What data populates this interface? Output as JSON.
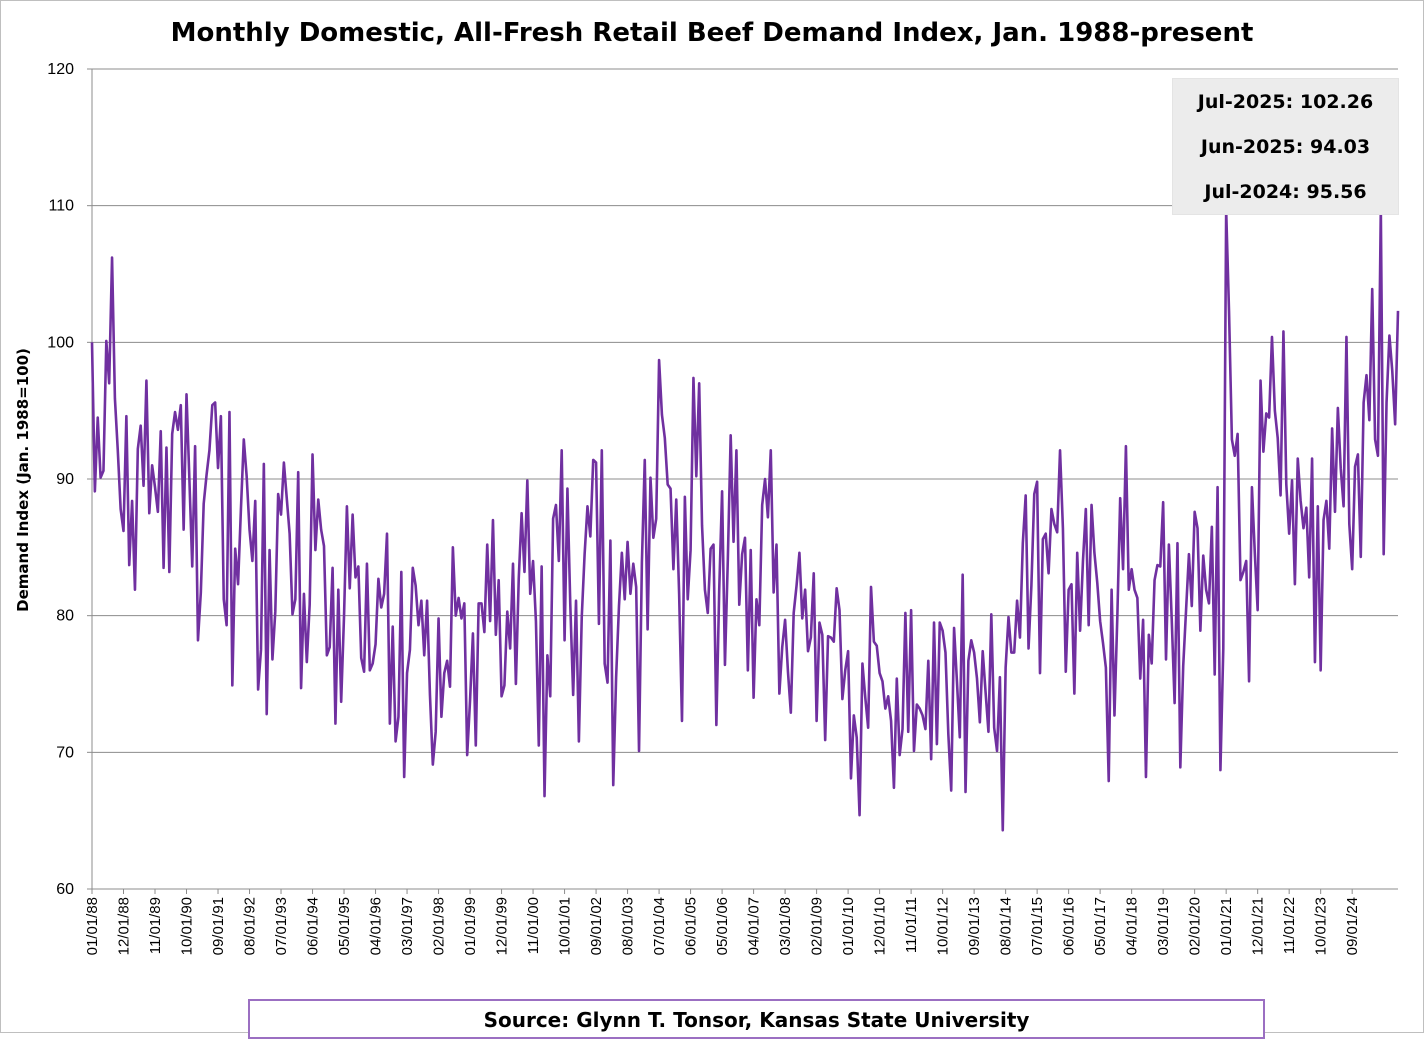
{
  "chart_data": {
    "type": "line",
    "title": "Monthly Domestic, All-Fresh Retail Beef Demand Index, Jan. 1988-present",
    "ylabel": "Demand Index (Jan. 1988=100)",
    "xlabel": "",
    "ylim": [
      60,
      120
    ],
    "yticks": [
      60,
      70,
      80,
      90,
      100,
      110,
      120
    ],
    "grid": "horizontal",
    "legend": "none",
    "line_color": "#7030A0",
    "x_start": "01/01/88",
    "x_tick_labels": [
      "01/01/88",
      "12/01/88",
      "11/01/89",
      "10/01/90",
      "09/01/91",
      "08/01/92",
      "07/01/93",
      "06/01/94",
      "05/01/95",
      "04/01/96",
      "03/01/97",
      "02/01/98",
      "01/01/99",
      "12/01/99",
      "11/01/00",
      "10/01/01",
      "09/01/02",
      "08/01/03",
      "07/01/04",
      "06/01/05",
      "05/01/06",
      "04/01/07",
      "03/01/08",
      "02/01/09",
      "01/01/10",
      "12/01/10",
      "11/01/11",
      "10/01/12",
      "09/01/13",
      "08/01/14",
      "07/01/15",
      "06/01/16",
      "05/01/17",
      "04/01/18",
      "03/01/19",
      "02/01/20",
      "01/01/21",
      "12/01/21",
      "11/01/22",
      "10/01/23",
      "09/01/24"
    ],
    "series": [
      {
        "name": "",
        "values": [
          100.0,
          89.1,
          94.5,
          90.1,
          90.6,
          100.1,
          97.0,
          106.2,
          95.9,
          92.1,
          87.8,
          86.2,
          94.6,
          83.7,
          88.4,
          81.9,
          92.2,
          93.9,
          89.5,
          97.2,
          87.5,
          91.0,
          89.4,
          87.6,
          93.5,
          83.5,
          92.3,
          83.2,
          93.3,
          94.9,
          93.6,
          95.4,
          86.3,
          96.2,
          90.0,
          83.6,
          92.4,
          78.2,
          81.7,
          88.2,
          90.3,
          92.1,
          95.4,
          95.6,
          90.8,
          94.6,
          81.2,
          79.3,
          94.9,
          74.9,
          84.9,
          82.3,
          87.8,
          92.9,
          90.2,
          86.3,
          84.0,
          88.4,
          74.6,
          77.5,
          91.1,
          72.8,
          84.8,
          76.8,
          80.3,
          88.9,
          87.4,
          91.2,
          88.6,
          86.0,
          80.1,
          81.2,
          90.5,
          74.7,
          81.6,
          76.6,
          80.8,
          91.8,
          84.8,
          88.5,
          86.3,
          85.1,
          77.1,
          77.7,
          83.5,
          72.1,
          81.9,
          73.7,
          80.0,
          88.0,
          82.0,
          87.4,
          82.8,
          83.6,
          76.9,
          75.9,
          83.8,
          76.0,
          76.5,
          77.9,
          82.7,
          80.6,
          81.6,
          86.0,
          72.1,
          79.2,
          70.8,
          72.6,
          83.2,
          68.2,
          75.8,
          77.5,
          83.5,
          82.2,
          79.3,
          81.1,
          77.1,
          81.1,
          74.2,
          69.1,
          71.5,
          79.8,
          72.6,
          75.8,
          76.7,
          74.8,
          85.0,
          80.0,
          81.3,
          79.8,
          80.9,
          69.8,
          73.8,
          78.7,
          70.5,
          80.9,
          80.9,
          78.8,
          85.2,
          79.6,
          87.0,
          78.6,
          82.6,
          74.1,
          74.9,
          80.3,
          77.6,
          83.8,
          75.0,
          82.7,
          87.5,
          83.2,
          89.9,
          81.6,
          84.0,
          79.6,
          70.5,
          83.6,
          66.8,
          77.1,
          74.1,
          87.1,
          88.1,
          84.0,
          92.1,
          78.2,
          89.3,
          80.8,
          74.2,
          81.1,
          70.8,
          79.9,
          84.5,
          88.0,
          85.8,
          91.4,
          91.2,
          79.4,
          92.1,
          76.5,
          75.1,
          85.5,
          67.6,
          75.5,
          80.7,
          84.6,
          81.2,
          85.4,
          81.6,
          83.8,
          82.1,
          70.1,
          83.9,
          91.4,
          79.0,
          90.1,
          85.7,
          87.1,
          98.7,
          94.7,
          93.0,
          89.6,
          89.3,
          83.4,
          88.5,
          81.6,
          72.3,
          88.7,
          81.2,
          84.8,
          97.4,
          90.2,
          97.0,
          86.6,
          81.9,
          80.2,
          84.9,
          85.2,
          72.0,
          81.9,
          89.1,
          76.4,
          84.1,
          93.2,
          85.4,
          92.1,
          80.8,
          84.5,
          85.7,
          76.0,
          84.8,
          74.0,
          81.2,
          79.3,
          88.1,
          90.0,
          87.2,
          92.1,
          81.7,
          85.2,
          74.3,
          77.7,
          79.7,
          75.9,
          72.9,
          80.2,
          82.2,
          84.6,
          79.8,
          81.9,
          77.4,
          78.4,
          83.1,
          72.3,
          79.5,
          78.6,
          70.9,
          78.5,
          78.4,
          78.1,
          82.0,
          80.4,
          73.9,
          76.0,
          77.4,
          68.1,
          72.7,
          71.1,
          65.4,
          76.5,
          74.0,
          71.8,
          82.1,
          78.1,
          77.8,
          75.8,
          75.2,
          73.2,
          74.1,
          72.3,
          67.4,
          75.4,
          69.8,
          71.7,
          80.2,
          71.5,
          80.4,
          70.1,
          73.5,
          73.2,
          72.7,
          71.7,
          76.7,
          69.5,
          79.5,
          70.6,
          79.5,
          78.9,
          77.3,
          71.3,
          67.2,
          79.1,
          75.2,
          71.1,
          83.0,
          67.1,
          76.7,
          78.2,
          77.3,
          75.4,
          72.2,
          77.4,
          74.4,
          71.5,
          80.1,
          71.8,
          70.1,
          75.5,
          64.3,
          76.2,
          79.9,
          77.3,
          77.3,
          81.1,
          78.4,
          85.3,
          88.8,
          77.6,
          82.2,
          88.9,
          89.8,
          75.8,
          85.6,
          86.0,
          83.1,
          87.8,
          86.7,
          86.1,
          92.1,
          86.4,
          75.9,
          81.9,
          82.3,
          74.3,
          84.6,
          78.9,
          84.0,
          87.8,
          79.3,
          88.1,
          84.6,
          82.4,
          79.6,
          78.0,
          76.2,
          67.9,
          81.9,
          72.7,
          79.9,
          88.6,
          83.4,
          92.4,
          81.9,
          83.4,
          81.9,
          81.3,
          75.4,
          79.7,
          68.2,
          78.6,
          76.5,
          82.6,
          83.7,
          83.6,
          88.3,
          76.8,
          85.2,
          79.7,
          73.6,
          85.3,
          68.9,
          76.3,
          80.4,
          84.5,
          80.7,
          87.6,
          86.4,
          78.9,
          84.4,
          81.9,
          80.9,
          86.5,
          75.7,
          89.4,
          68.7,
          77.6,
          109.7,
          102.3,
          92.9,
          91.7,
          93.3,
          82.6,
          83.2,
          84.0,
          75.2,
          89.4,
          84.6,
          80.4,
          97.2,
          92.0,
          94.8,
          94.5,
          100.4,
          95.0,
          93.0,
          88.8,
          100.8,
          89.6,
          86.0,
          89.9,
          82.3,
          91.5,
          88.4,
          86.4,
          87.9,
          82.8,
          91.5,
          76.6,
          88.0,
          76.0,
          87.0,
          88.4,
          84.9,
          93.7,
          87.6,
          95.2,
          90.8,
          88.0,
          100.4,
          86.7,
          83.4,
          90.9,
          91.8,
          84.3,
          95.6,
          97.6,
          94.3,
          103.9,
          92.9,
          91.7,
          109.8,
          84.5,
          95.6,
          100.5,
          97.9,
          94.0,
          102.3
        ]
      }
    ]
  },
  "callout": {
    "rows": [
      {
        "label": "Jul-2025:",
        "value": "102.26"
      },
      {
        "label": "Jun-2025:",
        "value": "94.03"
      },
      {
        "label": "Jul-2024:",
        "value": "95.56"
      }
    ]
  },
  "source": "Source: Glynn T. Tonsor, Kansas State University"
}
